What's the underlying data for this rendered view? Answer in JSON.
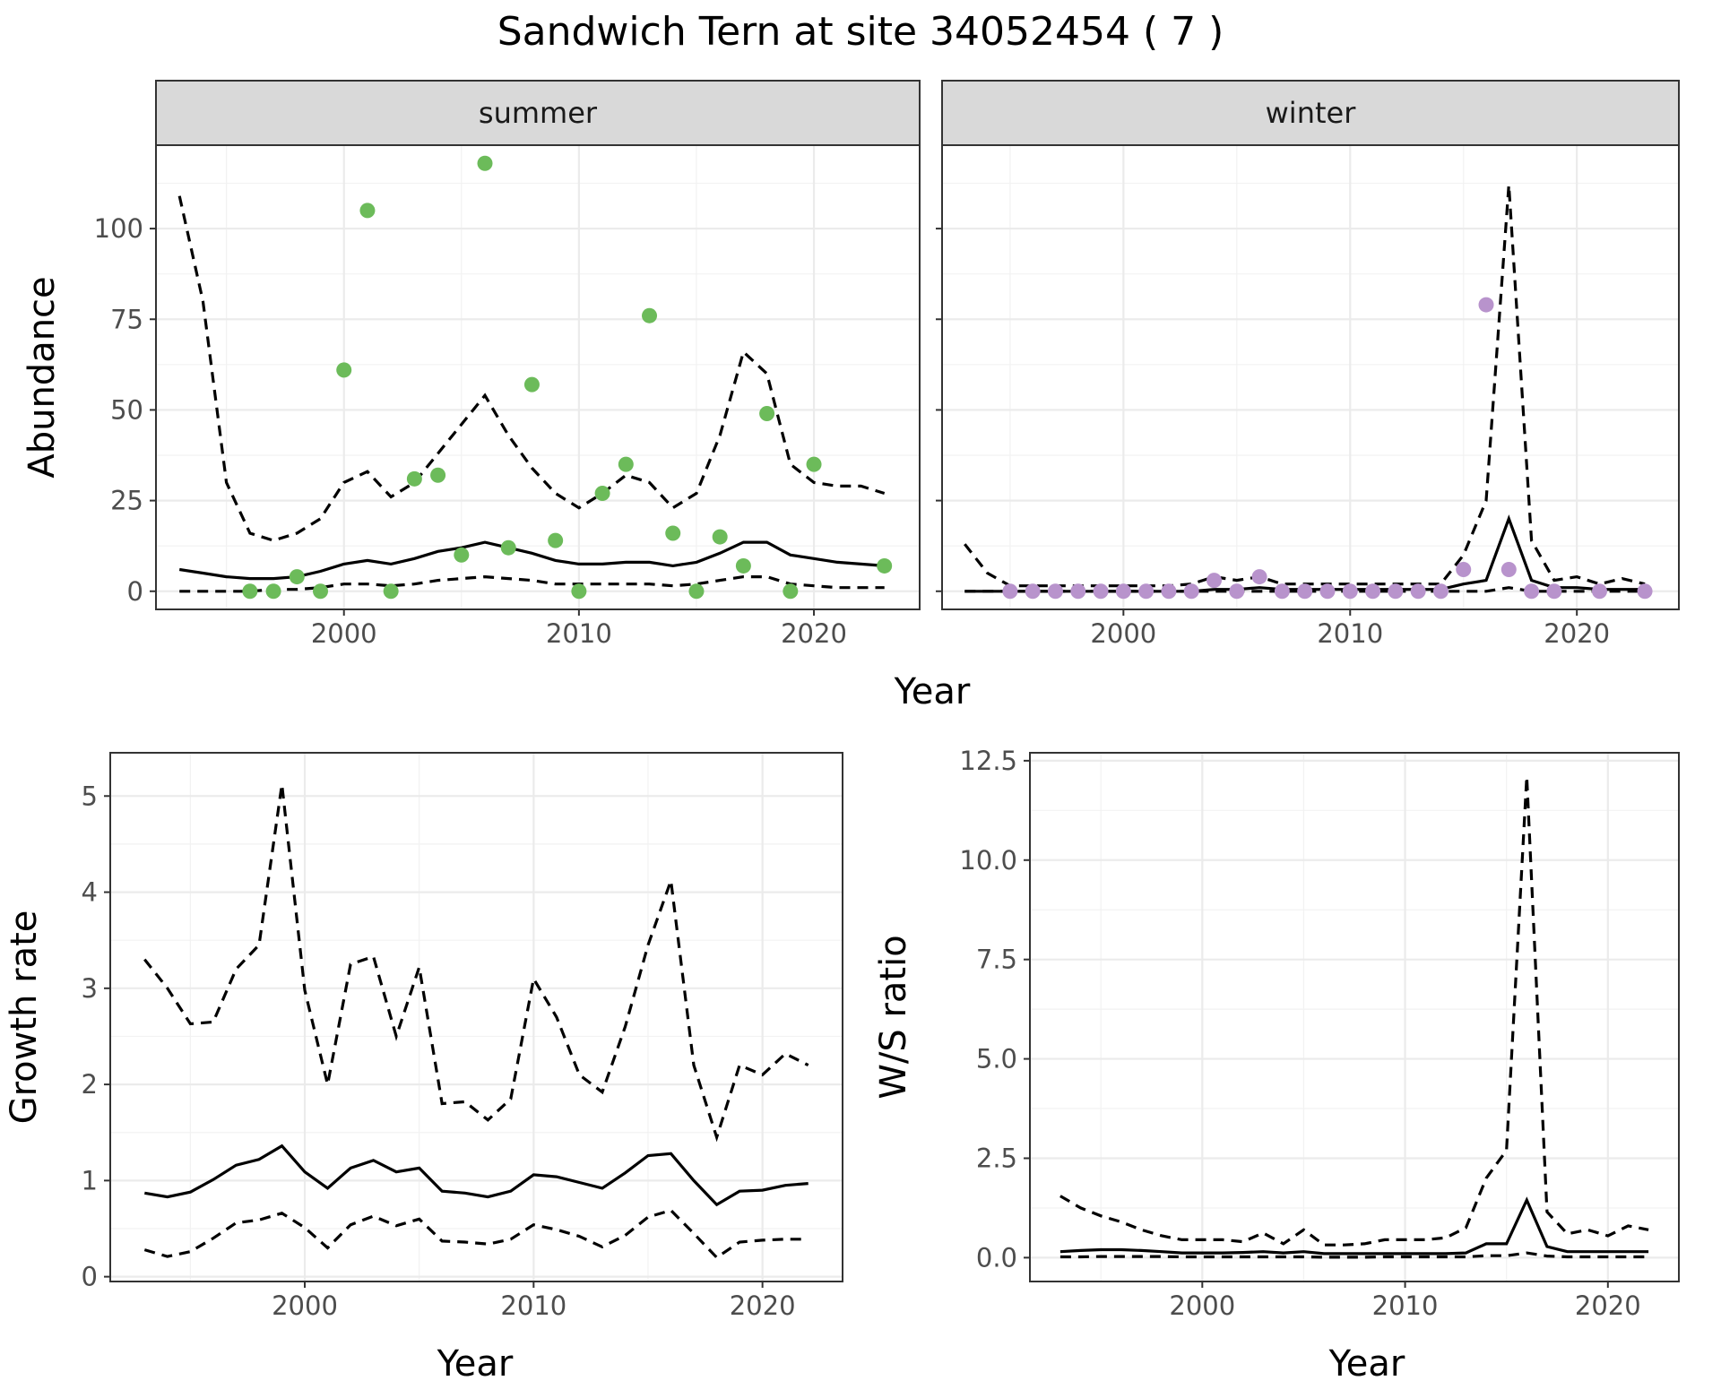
{
  "title": "Sandwich Tern at site 34052454 ( 7 )",
  "chart_data": [
    {
      "type": "line",
      "panel": "summer",
      "strip": "summer",
      "xlabel": "Year",
      "ylabel": "Abundance",
      "xlim": [
        1992,
        2024.5
      ],
      "ylim": [
        -5,
        123
      ],
      "xticks": [
        2000,
        2010,
        2020
      ],
      "yticks": [
        0,
        25,
        50,
        75,
        100
      ],
      "ytick_labels": [
        "0",
        "25",
        "50",
        "75",
        "100"
      ],
      "grid": true,
      "point_color": "#6cbb5a",
      "points": {
        "x": [
          1996,
          1997,
          1998,
          1999,
          2000,
          2001,
          2002,
          2003,
          2004,
          2005,
          2006,
          2007,
          2008,
          2009,
          2010,
          2011,
          2012,
          2013,
          2014,
          2015,
          2016,
          2017,
          2018,
          2019,
          2020,
          2023
        ],
        "y": [
          0,
          0,
          4,
          0,
          61,
          105,
          0,
          31,
          32,
          10,
          118,
          12,
          57,
          14,
          0,
          27,
          35,
          76,
          16,
          0,
          15,
          7,
          49,
          0,
          35,
          7
        ]
      },
      "series": [
        {
          "style": "solid",
          "x": [
            1993,
            1994,
            1995,
            1996,
            1997,
            1998,
            1999,
            2000,
            2001,
            2002,
            2003,
            2004,
            2005,
            2006,
            2007,
            2008,
            2009,
            2010,
            2011,
            2012,
            2013,
            2014,
            2015,
            2016,
            2017,
            2018,
            2019,
            2020,
            2021,
            2022,
            2023
          ],
          "y": [
            6,
            5,
            4,
            3.5,
            3.5,
            4,
            5.5,
            7.5,
            8.5,
            7.5,
            9,
            11,
            12,
            13.5,
            12,
            10.5,
            8.5,
            7.5,
            7.5,
            8,
            8,
            7,
            8,
            10.5,
            13.5,
            13.5,
            10,
            9,
            8,
            7.5,
            7
          ]
        },
        {
          "style": "dashed",
          "x": [
            1993,
            1994,
            1995,
            1996,
            1997,
            1998,
            1999,
            2000,
            2001,
            2002,
            2003,
            2004,
            2005,
            2006,
            2007,
            2008,
            2009,
            2010,
            2011,
            2012,
            2013,
            2014,
            2015,
            2016,
            2017,
            2018,
            2019,
            2020,
            2021,
            2022,
            2023
          ],
          "y": [
            109,
            80,
            30,
            16,
            14,
            16,
            20,
            30,
            33,
            26,
            30,
            38,
            46,
            54,
            43,
            34,
            27,
            23,
            27,
            32,
            30,
            23,
            27,
            43,
            66,
            60,
            35,
            30,
            29,
            29,
            27
          ]
        },
        {
          "style": "dashed",
          "x": [
            1993,
            1994,
            1995,
            1996,
            1997,
            1998,
            1999,
            2000,
            2001,
            2002,
            2003,
            2004,
            2005,
            2006,
            2007,
            2008,
            2009,
            2010,
            2011,
            2012,
            2013,
            2014,
            2015,
            2016,
            2017,
            2018,
            2019,
            2020,
            2021,
            2022,
            2023
          ],
          "y": [
            0,
            0,
            0,
            0,
            0.5,
            0.5,
            1,
            2,
            2,
            1.5,
            2,
            3,
            3.5,
            4,
            3.5,
            3,
            2,
            2,
            2,
            2,
            2,
            1.5,
            2,
            3,
            4,
            4,
            2,
            1.5,
            1,
            1,
            1
          ]
        }
      ]
    },
    {
      "type": "line",
      "panel": "winter",
      "strip": "winter",
      "xlabel": "Year",
      "ylabel": "",
      "xlim": [
        1992,
        2024.5
      ],
      "ylim": [
        -5,
        123
      ],
      "xticks": [
        2000,
        2010,
        2020
      ],
      "yticks": [
        0,
        25,
        50,
        75,
        100
      ],
      "ytick_labels": [],
      "grid": true,
      "point_color": "#b893cc",
      "points": {
        "x": [
          1995,
          1996,
          1997,
          1998,
          1999,
          2000,
          2001,
          2002,
          2003,
          2004,
          2005,
          2006,
          2007,
          2008,
          2009,
          2010,
          2011,
          2012,
          2013,
          2014,
          2015,
          2016,
          2017,
          2018,
          2019,
          2021,
          2023
        ],
        "y": [
          0,
          0,
          0,
          0,
          0,
          0,
          0,
          0,
          0,
          3,
          0,
          4,
          0,
          0,
          0,
          0,
          0,
          0,
          0,
          0,
          6,
          79,
          6,
          0,
          0,
          0,
          0
        ],
        "note_x_shift": [
          0,
          0,
          0,
          0,
          0,
          0,
          0,
          0,
          0,
          0,
          0,
          0,
          0,
          0,
          0,
          0,
          0,
          0,
          0,
          0,
          0,
          0,
          0,
          0,
          0,
          0,
          0
        ]
      },
      "series": [
        {
          "style": "solid",
          "x": [
            1993,
            1994,
            1995,
            1996,
            1997,
            1998,
            1999,
            2000,
            2001,
            2002,
            2003,
            2004,
            2005,
            2006,
            2007,
            2008,
            2009,
            2010,
            2011,
            2012,
            2013,
            2014,
            2015,
            2016,
            2017,
            2018,
            2019,
            2020,
            2021,
            2022,
            2023
          ],
          "y": [
            0,
            0,
            0,
            0,
            0,
            0,
            0,
            0,
            0,
            0,
            0,
            0.5,
            0.5,
            1,
            0.5,
            0.5,
            0.5,
            0.5,
            0.5,
            0.5,
            0.5,
            0.5,
            2,
            3,
            20,
            3,
            1,
            1,
            0.5,
            0.5,
            0.5
          ]
        },
        {
          "style": "dashed",
          "x": [
            1993,
            1994,
            1995,
            1996,
            1997,
            1998,
            1999,
            2000,
            2001,
            2002,
            2003,
            2004,
            2005,
            2006,
            2007,
            2008,
            2009,
            2010,
            2011,
            2012,
            2013,
            2014,
            2015,
            2016,
            2017,
            2018,
            2019,
            2020,
            2021,
            2022,
            2023
          ],
          "y": [
            13,
            5,
            1.5,
            1.5,
            1.5,
            1.5,
            1.5,
            1.5,
            1.5,
            1.5,
            2,
            4,
            3,
            4,
            2,
            2,
            2,
            2,
            2,
            2,
            2,
            2,
            10,
            25,
            112,
            14,
            3,
            4,
            2,
            3.5,
            2
          ]
        },
        {
          "style": "dashed",
          "x": [
            1993,
            1994,
            1995,
            1996,
            1997,
            1998,
            1999,
            2000,
            2001,
            2002,
            2003,
            2004,
            2005,
            2006,
            2007,
            2008,
            2009,
            2010,
            2011,
            2012,
            2013,
            2014,
            2015,
            2016,
            2017,
            2018,
            2019,
            2020,
            2021,
            2022,
            2023
          ],
          "y": [
            0,
            0,
            0,
            0,
            0,
            0,
            0,
            0,
            0,
            0,
            0,
            0,
            0,
            0,
            0,
            0,
            0,
            0,
            0,
            0,
            0,
            0,
            0,
            0,
            1,
            0,
            0,
            0,
            0,
            0,
            0
          ]
        }
      ]
    },
    {
      "type": "line",
      "panel": "growth",
      "xlabel": "Year",
      "ylabel": "Growth rate",
      "xlim": [
        1991.5,
        2023.5
      ],
      "ylim": [
        -0.05,
        5.45
      ],
      "xticks": [
        2000,
        2010,
        2020
      ],
      "yticks": [
        0,
        1,
        2,
        3,
        4,
        5
      ],
      "ytick_labels": [
        "0",
        "1",
        "2",
        "3",
        "4",
        "5"
      ],
      "grid": true,
      "series": [
        {
          "style": "solid",
          "x": [
            1993,
            1994,
            1995,
            1996,
            1997,
            1998,
            1999,
            2000,
            2001,
            2002,
            2003,
            2004,
            2005,
            2006,
            2007,
            2008,
            2009,
            2010,
            2011,
            2012,
            2013,
            2014,
            2015,
            2016,
            2017,
            2018,
            2019,
            2020,
            2021,
            2022
          ],
          "y": [
            0.87,
            0.83,
            0.88,
            1.01,
            1.16,
            1.22,
            1.36,
            1.09,
            0.92,
            1.13,
            1.21,
            1.09,
            1.13,
            0.89,
            0.87,
            0.83,
            0.89,
            1.06,
            1.04,
            0.98,
            0.92,
            1.08,
            1.26,
            1.28,
            1.0,
            0.75,
            0.89,
            0.9,
            0.95,
            0.97
          ]
        },
        {
          "style": "dashed",
          "x": [
            1993,
            1994,
            1995,
            1996,
            1997,
            1998,
            1999,
            2000,
            2001,
            2002,
            2003,
            2004,
            2005,
            2006,
            2007,
            2008,
            2009,
            2010,
            2011,
            2012,
            2013,
            2014,
            2015,
            2016,
            2017,
            2018,
            2019,
            2020,
            2021,
            2022
          ],
          "y": [
            3.3,
            3.0,
            2.63,
            2.65,
            3.2,
            3.45,
            5.12,
            2.98,
            2.0,
            3.25,
            3.33,
            2.5,
            3.22,
            1.8,
            1.82,
            1.63,
            1.85,
            3.1,
            2.7,
            2.1,
            1.92,
            2.6,
            3.45,
            4.12,
            2.2,
            1.45,
            2.2,
            2.1,
            2.32,
            2.2
          ]
        },
        {
          "style": "dashed",
          "x": [
            1993,
            1994,
            1995,
            1996,
            1997,
            1998,
            1999,
            2000,
            2001,
            2002,
            2003,
            2004,
            2005,
            2006,
            2007,
            2008,
            2009,
            2010,
            2011,
            2012,
            2013,
            2014,
            2015,
            2016,
            2017,
            2018,
            2019,
            2020,
            2021,
            2022
          ],
          "y": [
            0.28,
            0.21,
            0.26,
            0.4,
            0.56,
            0.59,
            0.66,
            0.51,
            0.3,
            0.54,
            0.63,
            0.53,
            0.6,
            0.37,
            0.36,
            0.34,
            0.39,
            0.54,
            0.49,
            0.42,
            0.31,
            0.43,
            0.62,
            0.69,
            0.45,
            0.2,
            0.36,
            0.38,
            0.39,
            0.39
          ]
        }
      ]
    },
    {
      "type": "line",
      "panel": "ratio",
      "xlabel": "Year",
      "ylabel": "W/S ratio",
      "xlim": [
        1991.5,
        2023.5
      ],
      "ylim": [
        -0.6,
        12.7
      ],
      "xticks": [
        2000,
        2010,
        2020
      ],
      "yticks": [
        0,
        2.5,
        5,
        7.5,
        10,
        12.5
      ],
      "ytick_labels": [
        "0.0",
        "2.5",
        "5.0",
        "7.5",
        "10.0",
        "12.5"
      ],
      "grid": true,
      "series": [
        {
          "style": "solid",
          "x": [
            1993,
            1994,
            1995,
            1996,
            1997,
            1998,
            1999,
            2000,
            2001,
            2002,
            2003,
            2004,
            2005,
            2006,
            2007,
            2008,
            2009,
            2010,
            2011,
            2012,
            2013,
            2014,
            2015,
            2016,
            2017,
            2018,
            2019,
            2020,
            2021,
            2022
          ],
          "y": [
            0.15,
            0.18,
            0.2,
            0.2,
            0.18,
            0.15,
            0.12,
            0.12,
            0.12,
            0.13,
            0.15,
            0.12,
            0.15,
            0.1,
            0.1,
            0.1,
            0.1,
            0.1,
            0.1,
            0.1,
            0.12,
            0.35,
            0.35,
            1.45,
            0.28,
            0.15,
            0.15,
            0.15,
            0.15,
            0.15
          ]
        },
        {
          "style": "dashed",
          "x": [
            1993,
            1994,
            1995,
            1996,
            1997,
            1998,
            1999,
            2000,
            2001,
            2002,
            2003,
            2004,
            2005,
            2006,
            2007,
            2008,
            2009,
            2010,
            2011,
            2012,
            2013,
            2014,
            2015,
            2016,
            2017,
            2018,
            2019,
            2020,
            2021,
            2022
          ],
          "y": [
            1.55,
            1.25,
            1.05,
            0.9,
            0.7,
            0.55,
            0.45,
            0.45,
            0.45,
            0.4,
            0.62,
            0.35,
            0.7,
            0.32,
            0.32,
            0.35,
            0.45,
            0.45,
            0.45,
            0.5,
            0.75,
            2.0,
            2.7,
            12.1,
            1.15,
            0.6,
            0.7,
            0.55,
            0.8,
            0.7
          ]
        },
        {
          "style": "dashed",
          "x": [
            1993,
            1994,
            1995,
            1996,
            1997,
            1998,
            1999,
            2000,
            2001,
            2002,
            2003,
            2004,
            2005,
            2006,
            2007,
            2008,
            2009,
            2010,
            2011,
            2012,
            2013,
            2014,
            2015,
            2016,
            2017,
            2018,
            2019,
            2020,
            2021,
            2022
          ],
          "y": [
            0.02,
            0.02,
            0.03,
            0.03,
            0.03,
            0.03,
            0.02,
            0.02,
            0.02,
            0.02,
            0.02,
            0.02,
            0.02,
            0.01,
            0.01,
            0.01,
            0.02,
            0.02,
            0.02,
            0.02,
            0.02,
            0.05,
            0.05,
            0.12,
            0.04,
            0.02,
            0.02,
            0.02,
            0.02,
            0.02
          ]
        }
      ]
    }
  ],
  "shared_xlabel_top": "Year"
}
